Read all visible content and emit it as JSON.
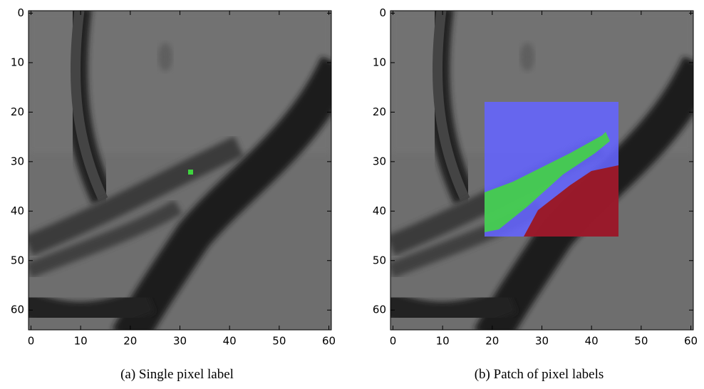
{
  "panels": [
    {
      "caption": "(a) Single pixel label",
      "xlim": [
        -0.5,
        60.5
      ],
      "ylim": [
        -0.5,
        64
      ],
      "xticks": [
        0,
        10,
        20,
        30,
        40,
        50,
        60
      ],
      "yticks": [
        0,
        10,
        20,
        30,
        40,
        50,
        60
      ]
    },
    {
      "caption": "(b) Patch of pixel labels",
      "xlim": [
        -0.5,
        60.5
      ],
      "ylim": [
        -0.5,
        64
      ],
      "xticks": [
        0,
        10,
        20,
        30,
        40,
        50,
        60
      ],
      "yticks": [
        0,
        10,
        20,
        30,
        40,
        50,
        60
      ]
    }
  ]
}
